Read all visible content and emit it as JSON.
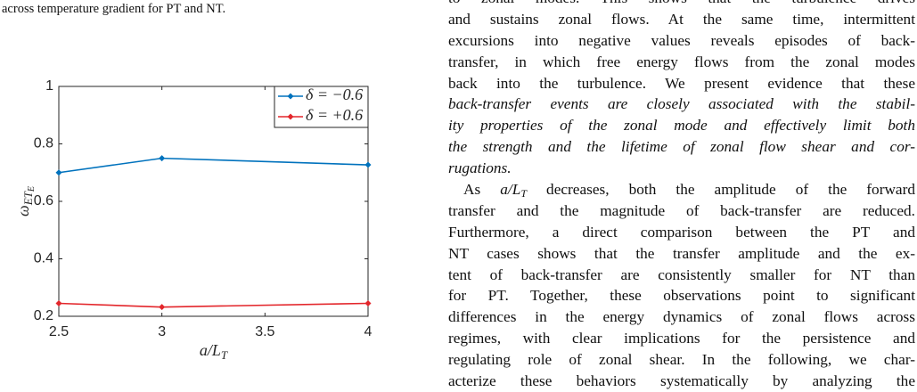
{
  "caption": "across temperature gradient for PT and NT.",
  "chart_data": {
    "type": "line",
    "x": [
      2.5,
      3,
      4
    ],
    "series": [
      {
        "name": "δ = −0.6",
        "color": "#0072BD",
        "values": [
          0.7,
          0.75,
          0.727
        ]
      },
      {
        "name": "δ = +0.6",
        "color": "#E3262B",
        "values": [
          0.245,
          0.232,
          0.245
        ]
      }
    ],
    "x_label": {
      "main": "a/L",
      "sub": "T"
    },
    "y_label": {
      "main": "ω",
      "sub": "ET",
      "subsub": "E"
    },
    "xlim": [
      2.5,
      4
    ],
    "xticks": [
      2.5,
      3,
      3.5,
      4
    ],
    "ylim": [
      0.2,
      1
    ],
    "yticks": [
      0.2,
      0.4,
      0.6,
      0.8,
      1
    ],
    "legend": "upper right"
  },
  "body": {
    "lines": [
      [
        {
          "t": "to zonal modes. This shows that the turbulence drives"
        }
      ],
      [
        {
          "t": "and sustains zonal flows. At the same time, intermittent"
        }
      ],
      [
        {
          "t": "excursions into negative values reveals episodes of back-"
        }
      ],
      [
        {
          "t": "transfer, in which free energy flows from the zonal modes"
        }
      ],
      [
        {
          "t": "back into the turbulence. We present evidence that these"
        }
      ],
      [
        {
          "t": "back-transfer events are closely associated with the stabil-",
          "style": "italic"
        }
      ],
      [
        {
          "t": "ity properties of the zonal mode and effectively limit both",
          "style": "italic"
        }
      ],
      [
        {
          "t": "the strength and the lifetime of zonal flow shear and cor-",
          "style": "italic"
        }
      ],
      [
        {
          "t": "rugations.",
          "style": "italic",
          "end": true
        }
      ],
      [
        {
          "t": "As ",
          "indent": true
        },
        {
          "t": "a/L",
          "style": "italic"
        },
        {
          "t": "T",
          "style": "sub"
        },
        {
          "t": " decreases, both the amplitude of the forward"
        }
      ],
      [
        {
          "t": "transfer and the magnitude of back-transfer are reduced."
        }
      ],
      [
        {
          "t": "Furthermore, a direct comparison between the PT and"
        }
      ],
      [
        {
          "t": "NT cases shows that the transfer amplitude and the ex-"
        }
      ],
      [
        {
          "t": "tent of back-transfer are consistently smaller for NT than"
        }
      ],
      [
        {
          "t": "for PT. Together, these observations point to significant"
        }
      ],
      [
        {
          "t": "differences in the energy dynamics of zonal flows across"
        }
      ],
      [
        {
          "t": "regimes, with clear implications for the persistence and"
        }
      ],
      [
        {
          "t": "regulating role of zonal shear. In the following, we char-"
        }
      ],
      [
        {
          "t": "acterize these behaviors systematically by analyzing the"
        }
      ]
    ]
  }
}
